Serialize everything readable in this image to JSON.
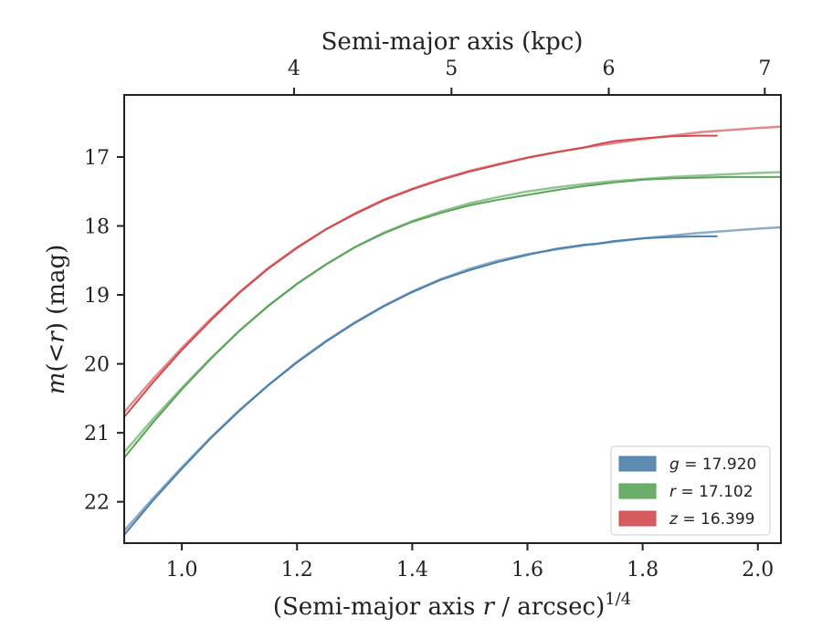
{
  "chart_data": {
    "type": "line",
    "xlabel_prefix": "(Semi-major axis ",
    "xlabel_var": "r",
    "xlabel_suffix": " / arcsec)",
    "xlabel_exponent": "1/4",
    "ylabel_var": "m",
    "ylabel_open": "(<",
    "ylabel_var2": "r",
    "ylabel_close": ")",
    "ylabel_unit": " (mag)",
    "top_xlabel": "Semi-major axis (kpc)",
    "xlim": [
      0.9,
      2.04
    ],
    "ylim": [
      22.6,
      16.1
    ],
    "y_inverted": true,
    "x_ticks": [
      "1.0",
      "1.2",
      "1.4",
      "1.6",
      "1.8",
      "2.0"
    ],
    "y_ticks": [
      "17",
      "18",
      "19",
      "20",
      "21",
      "22"
    ],
    "top_ticks": [
      {
        "label": "4",
        "x": 1.1948
      },
      {
        "label": "5",
        "x": 1.4681
      },
      {
        "label": "6",
        "x": 1.7412
      },
      {
        "label": "7",
        "x": 2.012
      }
    ],
    "legend_position": "lower-right",
    "series": [
      {
        "name": "g = 17.920",
        "band": "g",
        "value": "17.920",
        "color": "#4c7fab",
        "x": [
          0.9,
          0.95,
          1.0,
          1.05,
          1.1,
          1.15,
          1.2,
          1.25,
          1.3,
          1.35,
          1.4,
          1.45,
          1.5,
          1.55,
          1.6,
          1.65,
          1.7,
          1.72,
          1.75,
          1.8,
          1.85,
          1.9,
          1.93
        ],
        "y": [
          22.48,
          21.98,
          21.52,
          21.08,
          20.68,
          20.31,
          19.98,
          19.68,
          19.41,
          19.17,
          18.96,
          18.78,
          18.64,
          18.52,
          18.42,
          18.33,
          18.27,
          18.26,
          18.22,
          18.18,
          18.16,
          18.15,
          18.15
        ],
        "model_x": [
          0.9,
          0.95,
          1.0,
          1.05,
          1.1,
          1.15,
          1.2,
          1.25,
          1.3,
          1.35,
          1.4,
          1.45,
          1.5,
          1.55,
          1.6,
          1.65,
          1.7,
          1.75,
          1.8,
          1.85,
          1.9,
          1.95,
          2.0,
          2.04
        ],
        "model_y": [
          22.42,
          21.95,
          21.5,
          21.07,
          20.67,
          20.31,
          19.97,
          19.67,
          19.4,
          19.16,
          18.95,
          18.77,
          18.62,
          18.5,
          18.41,
          18.34,
          18.28,
          18.23,
          18.18,
          18.14,
          18.1,
          18.07,
          18.04,
          18.02
        ]
      },
      {
        "name": "r = 17.102",
        "band": "r",
        "value": "17.102",
        "color": "#5aa55a",
        "x": [
          0.9,
          0.95,
          1.0,
          1.05,
          1.1,
          1.15,
          1.2,
          1.25,
          1.3,
          1.35,
          1.4,
          1.45,
          1.5,
          1.55,
          1.6,
          1.65,
          1.7,
          1.72,
          1.75,
          1.8,
          1.85,
          1.9,
          1.95,
          2.0,
          2.04
        ],
        "y": [
          21.36,
          20.85,
          20.37,
          19.93,
          19.52,
          19.16,
          18.84,
          18.56,
          18.31,
          18.11,
          17.94,
          17.81,
          17.7,
          17.62,
          17.55,
          17.48,
          17.42,
          17.4,
          17.37,
          17.33,
          17.31,
          17.3,
          17.29,
          17.29,
          17.29
        ],
        "model_x": [
          0.9,
          0.95,
          1.0,
          1.05,
          1.1,
          1.15,
          1.2,
          1.25,
          1.3,
          1.35,
          1.4,
          1.45,
          1.5,
          1.55,
          1.6,
          1.65,
          1.7,
          1.75,
          1.8,
          1.85,
          1.9,
          1.95,
          2.0,
          2.04
        ],
        "model_y": [
          21.28,
          20.8,
          20.35,
          19.92,
          19.52,
          19.16,
          18.84,
          18.56,
          18.31,
          18.1,
          17.93,
          17.79,
          17.67,
          17.58,
          17.5,
          17.44,
          17.39,
          17.35,
          17.32,
          17.29,
          17.27,
          17.25,
          17.23,
          17.22
        ]
      },
      {
        "name": "z = 16.399",
        "band": "z",
        "value": "16.399",
        "color": "#d24a4e",
        "x": [
          0.9,
          0.95,
          1.0,
          1.05,
          1.1,
          1.15,
          1.2,
          1.25,
          1.3,
          1.35,
          1.4,
          1.45,
          1.5,
          1.55,
          1.6,
          1.65,
          1.7,
          1.72,
          1.75,
          1.8,
          1.85,
          1.9,
          1.93
        ],
        "y": [
          20.77,
          20.27,
          19.8,
          19.37,
          18.97,
          18.62,
          18.32,
          18.05,
          17.83,
          17.63,
          17.47,
          17.33,
          17.21,
          17.11,
          17.01,
          16.93,
          16.86,
          16.82,
          16.77,
          16.73,
          16.7,
          16.69,
          16.69
        ],
        "model_x": [
          0.9,
          0.95,
          1.0,
          1.05,
          1.1,
          1.15,
          1.2,
          1.25,
          1.3,
          1.35,
          1.4,
          1.45,
          1.5,
          1.55,
          1.6,
          1.65,
          1.7,
          1.75,
          1.8,
          1.85,
          1.9,
          1.95,
          2.0,
          2.04
        ],
        "model_y": [
          20.7,
          20.22,
          19.77,
          19.35,
          18.96,
          18.61,
          18.31,
          18.05,
          17.82,
          17.62,
          17.46,
          17.32,
          17.2,
          17.1,
          17.01,
          16.93,
          16.86,
          16.8,
          16.74,
          16.69,
          16.64,
          16.61,
          16.58,
          16.56
        ]
      }
    ]
  }
}
